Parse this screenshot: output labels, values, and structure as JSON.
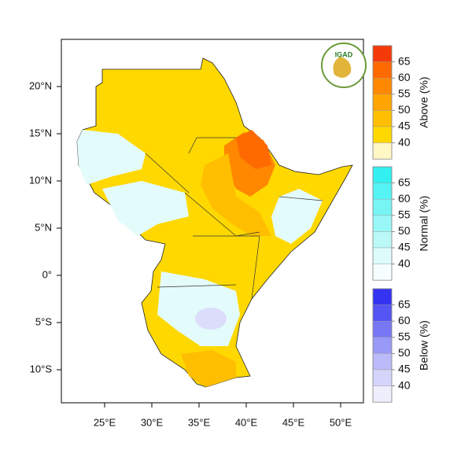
{
  "map": {
    "logo_text": "IGAD",
    "lon_ticks": [
      {
        "value": 25,
        "label": "25°E"
      },
      {
        "value": 30,
        "label": "30°E"
      },
      {
        "value": 35,
        "label": "35°E"
      },
      {
        "value": 40,
        "label": "40°E"
      },
      {
        "value": 45,
        "label": "45°E"
      },
      {
        "value": 50,
        "label": "50°E"
      }
    ],
    "lat_ticks": [
      {
        "value": 20,
        "label": "20°N"
      },
      {
        "value": 15,
        "label": "15°N"
      },
      {
        "value": 10,
        "label": "10°N"
      },
      {
        "value": 5,
        "label": "5°N"
      },
      {
        "value": 0,
        "label": "0°"
      },
      {
        "value": -5,
        "label": "5°S"
      },
      {
        "value": -10,
        "label": "10°S"
      }
    ],
    "legends": [
      {
        "title": "Above (%)",
        "labels": [
          65,
          60,
          55,
          50,
          45,
          40
        ],
        "band_colors": [
          "#f53a0a",
          "#ff6a00",
          "#ff8800",
          "#ffa400",
          "#ffbf00",
          "#ffd800",
          "#fff7c4"
        ]
      },
      {
        "title": "Normal (%)",
        "labels": [
          65,
          60,
          55,
          50,
          45,
          40
        ],
        "band_colors": [
          "#33f0f0",
          "#55f3f3",
          "#77f5f5",
          "#99f7f7",
          "#bbf9f9",
          "#ddfbfb",
          "#f6fefe"
        ]
      },
      {
        "title": "Below (%)",
        "labels": [
          65,
          60,
          55,
          50,
          45,
          40
        ],
        "band_colors": [
          "#3333f0",
          "#5555f3",
          "#7777f5",
          "#9999f7",
          "#bbbbf9",
          "#d5d5fb",
          "#eeeefd"
        ]
      }
    ]
  }
}
